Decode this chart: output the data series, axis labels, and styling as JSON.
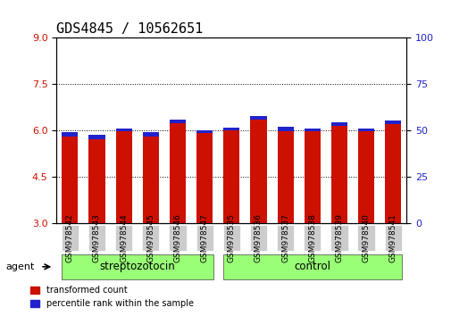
{
  "title": "GDS4845 / 10562651",
  "samples": [
    "GSM978542",
    "GSM978543",
    "GSM978544",
    "GSM978545",
    "GSM978546",
    "GSM978547",
    "GSM978535",
    "GSM978536",
    "GSM978537",
    "GSM978538",
    "GSM978539",
    "GSM978540",
    "GSM978541"
  ],
  "red_heights": [
    5.92,
    5.85,
    6.05,
    5.95,
    6.35,
    6.0,
    6.1,
    6.45,
    6.1,
    6.05,
    6.25,
    6.05,
    6.3
  ],
  "blue_tops": [
    5.82,
    5.72,
    5.98,
    5.82,
    6.25,
    5.92,
    6.01,
    6.35,
    5.98,
    5.97,
    6.16,
    5.98,
    6.22
  ],
  "blue_heights": [
    0.12,
    0.14,
    0.09,
    0.14,
    0.12,
    0.1,
    0.1,
    0.12,
    0.14,
    0.1,
    0.11,
    0.09,
    0.1
  ],
  "ymin": 3,
  "ymax": 9,
  "yticks_left": [
    3,
    4.5,
    6,
    7.5,
    9
  ],
  "yticks_right": [
    0,
    25,
    50,
    75,
    100
  ],
  "red_color": "#cc1100",
  "blue_color": "#2222cc",
  "bar_width": 0.6,
  "background_color": "#ffffff",
  "plot_bg_color": "#ffffff",
  "grid_color": "#000000",
  "group1_label": "streptozotocin",
  "group2_label": "control",
  "group1_indices": [
    0,
    1,
    2,
    3,
    4,
    5
  ],
  "group2_indices": [
    6,
    7,
    8,
    9,
    10,
    11,
    12
  ],
  "group_bg_color": "#99ff77",
  "legend_items": [
    "transformed count",
    "percentile rank within the sample"
  ],
  "agent_label": "agent",
  "xlabel_color": "#cc1100",
  "right_axis_color": "#2222cc",
  "ticklabel_bg": "#cccccc",
  "title_fontsize": 11,
  "axis_fontsize": 9,
  "tick_fontsize": 8
}
